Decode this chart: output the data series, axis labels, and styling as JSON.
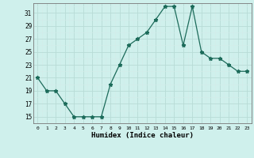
{
  "x": [
    0,
    1,
    2,
    3,
    4,
    5,
    6,
    7,
    8,
    9,
    10,
    11,
    12,
    13,
    14,
    15,
    16,
    17,
    18,
    19,
    20,
    21,
    22,
    23
  ],
  "y": [
    21,
    19,
    19,
    17,
    15,
    15,
    15,
    15,
    20,
    23,
    26,
    27,
    28,
    30,
    32,
    32,
    26,
    32,
    25,
    24,
    24,
    23,
    22,
    22
  ],
  "line_color": "#1c6b5a",
  "marker": "*",
  "marker_size": 3.5,
  "bg_color": "#cff0ec",
  "grid_major_color": "#b8dbd6",
  "grid_minor_color": "#d4ecea",
  "xlabel": "Humidex (Indice chaleur)",
  "yticks": [
    15,
    17,
    19,
    21,
    23,
    25,
    27,
    29,
    31
  ],
  "xticks": [
    0,
    1,
    2,
    3,
    4,
    5,
    6,
    7,
    8,
    9,
    10,
    11,
    12,
    13,
    14,
    15,
    16,
    17,
    18,
    19,
    20,
    21,
    22,
    23
  ],
  "ylim": [
    14,
    32.5
  ],
  "xlim": [
    -0.5,
    23.5
  ]
}
